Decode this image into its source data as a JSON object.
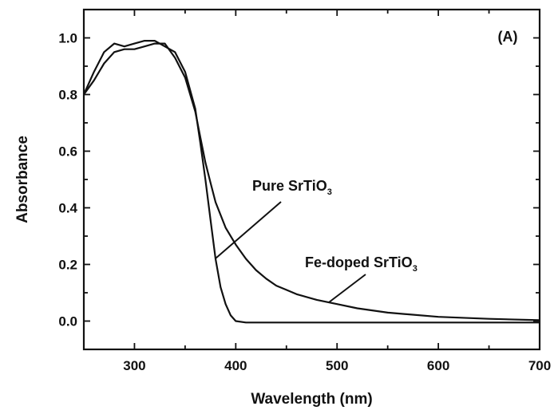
{
  "chart_data": {
    "type": "line",
    "panel_label": "(A)",
    "xlabel": "Wavelength (nm)",
    "ylabel": "Absorbance",
    "xlim": [
      250,
      700
    ],
    "ylim": [
      -0.1,
      1.1
    ],
    "x_ticks": [
      300,
      400,
      500,
      600,
      700
    ],
    "y_ticks": [
      0.0,
      0.2,
      0.4,
      0.6,
      0.8,
      1.0
    ],
    "grid": false,
    "legend": "none",
    "series": [
      {
        "label_main": "Pure SrTiO",
        "label_sub": "3",
        "x": [
          250,
          260,
          270,
          280,
          290,
          300,
          310,
          320,
          330,
          340,
          350,
          360,
          365,
          370,
          375,
          380,
          385,
          390,
          395,
          400,
          410,
          450,
          500,
          600,
          700
        ],
        "y": [
          0.8,
          0.88,
          0.95,
          0.98,
          0.97,
          0.98,
          0.99,
          0.99,
          0.97,
          0.95,
          0.88,
          0.75,
          0.63,
          0.5,
          0.36,
          0.22,
          0.12,
          0.06,
          0.02,
          0.0,
          -0.005,
          -0.005,
          -0.005,
          -0.005,
          -0.005
        ]
      },
      {
        "label_main": "Fe-doped SrTiO",
        "label_sub": "3",
        "x": [
          250,
          260,
          270,
          280,
          290,
          300,
          310,
          320,
          330,
          340,
          350,
          360,
          365,
          370,
          375,
          380,
          390,
          400,
          410,
          420,
          430,
          440,
          450,
          460,
          480,
          500,
          520,
          550,
          600,
          650,
          700
        ],
        "y": [
          0.8,
          0.85,
          0.91,
          0.95,
          0.96,
          0.96,
          0.97,
          0.98,
          0.98,
          0.93,
          0.86,
          0.74,
          0.65,
          0.56,
          0.49,
          0.42,
          0.33,
          0.27,
          0.22,
          0.18,
          0.15,
          0.125,
          0.11,
          0.095,
          0.075,
          0.06,
          0.045,
          0.03,
          0.015,
          0.008,
          0.003
        ]
      }
    ]
  }
}
